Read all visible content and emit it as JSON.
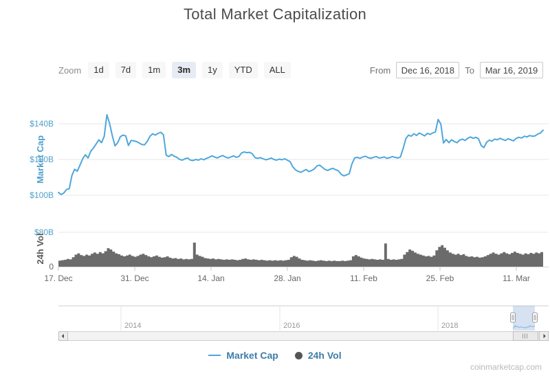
{
  "title": "Total Market Capitalization",
  "toolbar": {
    "zoom_label": "Zoom",
    "buttons": [
      "1d",
      "7d",
      "1m",
      "3m",
      "1y",
      "YTD",
      "ALL"
    ],
    "selected": "3m",
    "from_label": "From",
    "from_value": "Dec 16, 2018",
    "to_label": "To",
    "to_value": "Mar 16, 2019"
  },
  "watermark": "coinmarketcap.com",
  "navigator": {
    "year_labels": [
      "2014",
      "2016",
      "2018"
    ]
  },
  "colors": {
    "market_cap_line": "#4da6db",
    "volume_bars": "#6b6b6b",
    "blue_axis_text": "#4f9fca",
    "gray_axis_text": "#666666",
    "legend_text": "#3e7ca8",
    "selected_button_bg": "#e6ebf4",
    "navigator_selection": "rgba(91,138,200,0.25)"
  },
  "chart_data": {
    "type": "line",
    "title": "Total Market Capitalization",
    "x_range": [
      "Dec 16, 2018",
      "Mar 16, 2019"
    ],
    "x_tick_labels": [
      "17. Dec",
      "31. Dec",
      "14. Jan",
      "28. Jan",
      "11. Feb",
      "25. Feb",
      "11. Mar"
    ],
    "grid": true,
    "legend_position": "bottom",
    "series": [
      {
        "name": "Market Cap",
        "type": "line",
        "color": "#4da6db",
        "unit": "USD billions",
        "axis": {
          "label": "Market Cap",
          "range": [
            97,
            148
          ],
          "ticks": [
            {
              "label": "$100B",
              "value": 100
            },
            {
              "label": "$120B",
              "value": 120
            },
            {
              "label": "$140B",
              "value": 140
            }
          ]
        },
        "values": [
          101.5,
          100.4,
          101.2,
          103.2,
          103.6,
          111.0,
          114.5,
          113.4,
          116.8,
          120.4,
          122.6,
          120.8,
          124.6,
          126.4,
          128.6,
          131.0,
          129.4,
          133.0,
          145.0,
          140.2,
          133.4,
          127.6,
          129.4,
          132.8,
          133.6,
          133.2,
          127.8,
          130.6,
          130.4,
          130.0,
          129.2,
          128.4,
          128.2,
          130.2,
          133.0,
          134.4,
          133.6,
          134.6,
          135.2,
          133.8,
          122.4,
          121.6,
          122.8,
          121.8,
          121.2,
          120.0,
          119.6,
          120.4,
          120.8,
          119.6,
          119.4,
          120.0,
          119.6,
          120.4,
          119.8,
          120.6,
          121.2,
          122.0,
          121.4,
          120.8,
          121.6,
          122.2,
          121.4,
          120.8,
          121.4,
          122.0,
          121.2,
          121.6,
          123.6,
          124.2,
          123.8,
          124.0,
          123.2,
          121.0,
          120.6,
          121.0,
          120.4,
          119.8,
          120.2,
          120.8,
          120.0,
          119.6,
          120.2,
          119.8,
          120.4,
          119.6,
          118.8,
          116.0,
          114.2,
          113.4,
          112.8,
          113.6,
          114.4,
          113.2,
          113.8,
          114.6,
          116.4,
          116.8,
          115.6,
          114.4,
          113.8,
          114.6,
          115.0,
          114.2,
          113.6,
          111.6,
          110.8,
          111.4,
          112.0,
          117.5,
          120.8,
          121.2,
          120.6,
          121.4,
          121.8,
          121.0,
          120.6,
          121.2,
          121.6,
          120.8,
          121.0,
          121.4,
          120.6,
          121.0,
          121.6,
          121.2,
          120.8,
          121.4,
          126.0,
          131.6,
          133.6,
          133.0,
          134.4,
          133.4,
          134.8,
          134.0,
          133.2,
          134.6,
          134.0,
          134.8,
          135.4,
          142.4,
          139.8,
          129.2,
          131.2,
          129.4,
          131.0,
          130.0,
          129.4,
          130.8,
          131.4,
          130.6,
          131.8,
          132.6,
          131.8,
          132.4,
          131.6,
          127.8,
          126.6,
          129.6,
          130.8,
          130.2,
          131.4,
          131.0,
          131.8,
          131.2,
          130.6,
          131.6,
          131.0,
          130.4,
          131.8,
          132.4,
          132.0,
          133.0,
          132.6,
          133.4,
          133.0,
          133.2,
          134.2,
          134.8,
          136.4
        ]
      },
      {
        "name": "24h Vol",
        "type": "column",
        "color": "#6b6b6b",
        "unit": "USD billions",
        "axis": {
          "label": "24h Vol",
          "range": [
            0,
            80
          ],
          "ticks": [
            {
              "label": "0",
              "value": 0
            },
            {
              "label": "$80B",
              "value": 80
            }
          ]
        },
        "values": [
          14,
          15,
          16,
          18,
          17,
          22,
          28,
          31,
          27,
          25,
          28,
          26,
          30,
          33,
          30,
          34,
          31,
          36,
          43,
          40,
          35,
          31,
          29,
          26,
          24,
          26,
          28,
          25,
          23,
          25,
          28,
          30,
          27,
          24,
          22,
          24,
          26,
          23,
          21,
          22,
          24,
          21,
          19,
          20,
          18,
          19,
          17,
          18,
          17,
          18,
          56,
          28,
          25,
          23,
          20,
          19,
          18,
          19,
          17,
          18,
          17,
          16,
          17,
          16,
          17,
          16,
          15,
          16,
          18,
          19,
          17,
          16,
          17,
          16,
          15,
          16,
          15,
          14,
          15,
          14,
          15,
          14,
          15,
          14,
          15,
          16,
          22,
          25,
          23,
          19,
          16,
          15,
          14,
          15,
          14,
          13,
          14,
          15,
          14,
          13,
          14,
          13,
          14,
          13,
          13,
          14,
          13,
          14,
          15,
          24,
          27,
          24,
          21,
          19,
          18,
          17,
          18,
          17,
          16,
          17,
          16,
          54,
          18,
          16,
          17,
          16,
          17,
          18,
          28,
          34,
          40,
          37,
          33,
          30,
          28,
          26,
          24,
          25,
          23,
          26,
          38,
          46,
          50,
          44,
          38,
          33,
          30,
          28,
          30,
          27,
          29,
          25,
          23,
          24,
          22,
          23,
          21,
          22,
          24,
          27,
          30,
          33,
          30,
          28,
          31,
          34,
          31,
          29,
          32,
          35,
          32,
          30,
          28,
          31,
          29,
          32,
          30,
          33,
          31,
          34,
          37
        ]
      }
    ],
    "navigator_years": [
      "2014",
      "2016",
      "2018"
    ]
  },
  "legend": {
    "items": [
      {
        "label": "Market Cap",
        "marker": "line"
      },
      {
        "label": "24h Vol",
        "marker": "circle"
      }
    ]
  }
}
